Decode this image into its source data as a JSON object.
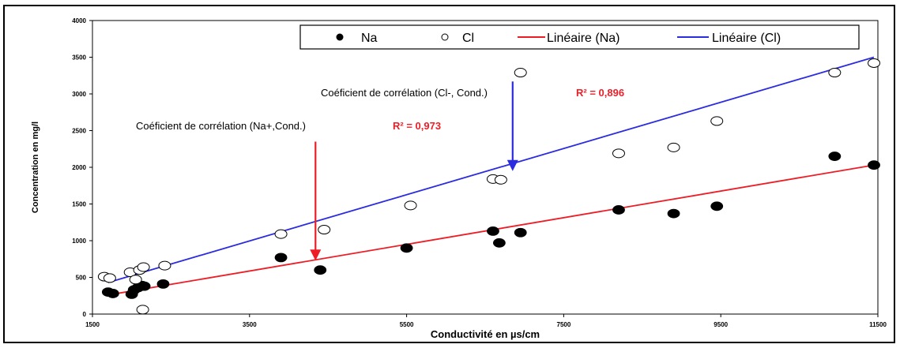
{
  "chart_data": {
    "type": "scatter",
    "xlabel": "Conductivité en µs/cm",
    "ylabel": "Concentration en mg/l",
    "xlim": [
      1500,
      11500
    ],
    "ylim": [
      0,
      4000
    ],
    "xticks": [
      "1500",
      "3500",
      "5500",
      "7500",
      "9500",
      "11500"
    ],
    "yticks": [
      "0",
      "500",
      "1000",
      "1500",
      "2000",
      "2500",
      "3000",
      "3500",
      "4000"
    ],
    "legend_position": "top-right",
    "grid": false,
    "series": [
      {
        "name": "Na",
        "marker": "filled-circle",
        "color": "#000000",
        "points": [
          [
            1700,
            300
          ],
          [
            1760,
            280
          ],
          [
            2000,
            270
          ],
          [
            2030,
            330
          ],
          [
            2080,
            360
          ],
          [
            2130,
            390
          ],
          [
            2160,
            380
          ],
          [
            2400,
            410
          ],
          [
            3900,
            770
          ],
          [
            4400,
            600
          ],
          [
            5500,
            900
          ],
          [
            6600,
            1130
          ],
          [
            6680,
            970
          ],
          [
            6950,
            1110
          ],
          [
            8200,
            1420
          ],
          [
            8900,
            1370
          ],
          [
            9450,
            1470
          ],
          [
            10950,
            2150
          ],
          [
            11450,
            2030
          ]
        ]
      },
      {
        "name": "Cl",
        "marker": "hollow-circle",
        "color": "#000000",
        "points": [
          [
            1650,
            510
          ],
          [
            1720,
            490
          ],
          [
            1980,
            570
          ],
          [
            2050,
            470
          ],
          [
            2100,
            600
          ],
          [
            2150,
            640
          ],
          [
            2140,
            60
          ],
          [
            2420,
            660
          ],
          [
            3900,
            1090
          ],
          [
            4450,
            1150
          ],
          [
            5550,
            1480
          ],
          [
            6600,
            1840
          ],
          [
            6700,
            1830
          ],
          [
            6950,
            3290
          ],
          [
            8200,
            2190
          ],
          [
            8900,
            2270
          ],
          [
            9450,
            2630
          ],
          [
            10950,
            3290
          ],
          [
            11450,
            3420
          ]
        ]
      },
      {
        "name": "Linéaire (Na)",
        "type": "line",
        "color": "#ee1c25",
        "points": [
          [
            1700,
            260
          ],
          [
            11450,
            2030
          ]
        ]
      },
      {
        "name": "Linéaire (Cl)",
        "type": "line",
        "color": "#2b2be0",
        "points": [
          [
            1700,
            430
          ],
          [
            11450,
            3500
          ]
        ]
      }
    ],
    "annotations": [
      {
        "label": "Coéficient de corrélation (Cl-, Cond.)",
        "r2": "R² = 0,896",
        "arrow_color": "#2b2be0",
        "arrow_from": [
          6850,
          3170
        ],
        "arrow_to": [
          6850,
          1970
        ]
      },
      {
        "label": "Coéficient de corrélation (Na+,Cond.)",
        "r2": "R² = 0,973",
        "arrow_color": "#ee1c25",
        "arrow_from": [
          4340,
          2350
        ],
        "arrow_to": [
          4340,
          750
        ]
      }
    ]
  }
}
